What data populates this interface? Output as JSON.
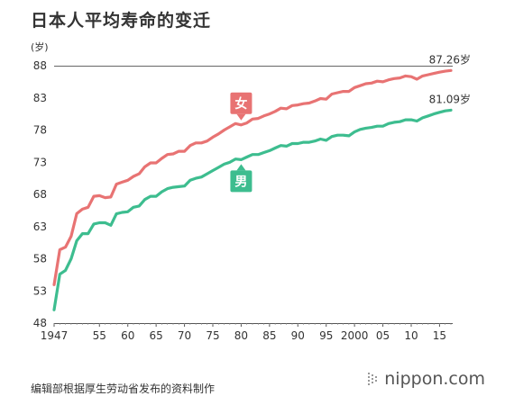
{
  "chart_data": {
    "type": "line",
    "title": "日本人平均寿命的变迁",
    "ylabel": "(岁)",
    "xlabel": "",
    "ylim": [
      48,
      88
    ],
    "xlim": [
      1947,
      2017
    ],
    "y_ticks": [
      48,
      53,
      58,
      63,
      68,
      73,
      78,
      83,
      88
    ],
    "x_ticks": [
      {
        "year": 1947,
        "label": "1947"
      },
      {
        "year": 1955,
        "label": "55"
      },
      {
        "year": 1960,
        "label": "60"
      },
      {
        "year": 1965,
        "label": "65"
      },
      {
        "year": 1970,
        "label": "70"
      },
      {
        "year": 1975,
        "label": "75"
      },
      {
        "year": 1980,
        "label": "80"
      },
      {
        "year": 1985,
        "label": "85"
      },
      {
        "year": 1990,
        "label": "90"
      },
      {
        "year": 1995,
        "label": "95"
      },
      {
        "year": 2000,
        "label": "2000"
      },
      {
        "year": 2005,
        "label": "05"
      },
      {
        "year": 2010,
        "label": "10"
      },
      {
        "year": 2015,
        "label": "15"
      }
    ],
    "reference_line": 88,
    "series": [
      {
        "name": "女",
        "color": "#e87373",
        "end_label": "87.26岁",
        "label_year": 1980,
        "x": [
          1947,
          1948,
          1949,
          1950,
          1951,
          1952,
          1953,
          1954,
          1955,
          1956,
          1957,
          1958,
          1959,
          1960,
          1961,
          1962,
          1963,
          1964,
          1965,
          1966,
          1967,
          1968,
          1969,
          1970,
          1971,
          1972,
          1973,
          1974,
          1975,
          1976,
          1977,
          1978,
          1979,
          1980,
          1981,
          1982,
          1983,
          1984,
          1985,
          1986,
          1987,
          1988,
          1989,
          1990,
          1991,
          1992,
          1993,
          1994,
          1995,
          1996,
          1997,
          1998,
          1999,
          2000,
          2001,
          2002,
          2003,
          2004,
          2005,
          2006,
          2007,
          2008,
          2009,
          2010,
          2011,
          2012,
          2013,
          2014,
          2015,
          2016,
          2017
        ],
        "values": [
          53.96,
          59.4,
          59.8,
          61.5,
          65.0,
          65.7,
          66.0,
          67.7,
          67.8,
          67.5,
          67.6,
          69.6,
          69.9,
          70.2,
          70.8,
          71.2,
          72.3,
          72.9,
          72.9,
          73.6,
          74.2,
          74.3,
          74.7,
          74.7,
          75.6,
          76.0,
          76.0,
          76.3,
          76.9,
          77.4,
          78.0,
          78.5,
          79.0,
          78.8,
          79.1,
          79.7,
          79.8,
          80.2,
          80.5,
          80.9,
          81.4,
          81.3,
          81.8,
          81.9,
          82.1,
          82.2,
          82.5,
          82.9,
          82.8,
          83.6,
          83.8,
          84.0,
          84.0,
          84.6,
          84.9,
          85.2,
          85.3,
          85.6,
          85.5,
          85.8,
          86.0,
          86.1,
          86.4,
          86.3,
          85.9,
          86.4,
          86.6,
          86.8,
          86.99,
          87.14,
          87.26
        ]
      },
      {
        "name": "男",
        "color": "#3dbd8f",
        "end_label": "81.09岁",
        "label_year": 1980,
        "x": [
          1947,
          1948,
          1949,
          1950,
          1951,
          1952,
          1953,
          1954,
          1955,
          1956,
          1957,
          1958,
          1959,
          1960,
          1961,
          1962,
          1963,
          1964,
          1965,
          1966,
          1967,
          1968,
          1969,
          1970,
          1971,
          1972,
          1973,
          1974,
          1975,
          1976,
          1977,
          1978,
          1979,
          1980,
          1981,
          1982,
          1983,
          1984,
          1985,
          1986,
          1987,
          1988,
          1989,
          1990,
          1991,
          1992,
          1993,
          1994,
          1995,
          1996,
          1997,
          1998,
          1999,
          2000,
          2001,
          2002,
          2003,
          2004,
          2005,
          2006,
          2007,
          2008,
          2009,
          2010,
          2011,
          2012,
          2013,
          2014,
          2015,
          2016,
          2017
        ],
        "values": [
          50.06,
          55.6,
          56.2,
          58.0,
          60.8,
          61.9,
          61.9,
          63.4,
          63.6,
          63.6,
          63.2,
          64.98,
          65.2,
          65.3,
          66.0,
          66.2,
          67.2,
          67.7,
          67.7,
          68.4,
          68.9,
          69.1,
          69.2,
          69.3,
          70.2,
          70.5,
          70.7,
          71.2,
          71.7,
          72.2,
          72.7,
          73.0,
          73.5,
          73.4,
          73.8,
          74.2,
          74.2,
          74.5,
          74.8,
          75.2,
          75.6,
          75.5,
          75.9,
          75.9,
          76.1,
          76.1,
          76.3,
          76.6,
          76.4,
          77.0,
          77.2,
          77.2,
          77.1,
          77.7,
          78.1,
          78.3,
          78.4,
          78.6,
          78.6,
          79.0,
          79.2,
          79.3,
          79.6,
          79.6,
          79.4,
          79.9,
          80.2,
          80.5,
          80.75,
          80.98,
          81.09
        ]
      }
    ],
    "grid": false
  },
  "footer": {
    "source": "编辑部根据厚生劳动省发布的资料制作",
    "brand": "nippon.com"
  }
}
